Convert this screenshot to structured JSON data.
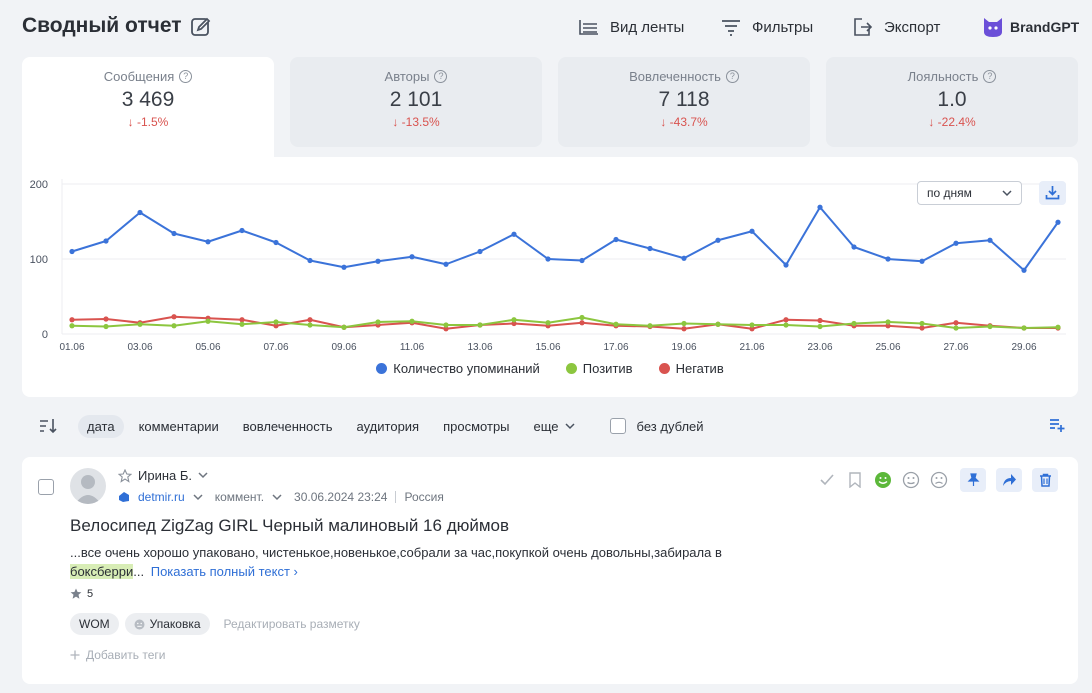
{
  "header": {
    "title": "Сводный отчет",
    "feed_view": "Вид ленты",
    "filters": "Фильтры",
    "export": "Экспорт",
    "brand": "BrandGPT"
  },
  "kpis": [
    {
      "label": "Сообщения",
      "value": "3 469",
      "delta": "↓ -1.5%"
    },
    {
      "label": "Авторы",
      "value": "2 101",
      "delta": "↓ -13.5%"
    },
    {
      "label": "Вовлеченность",
      "value": "7 118",
      "delta": "↓ -43.7%"
    },
    {
      "label": "Лояльность",
      "value": "1.0",
      "delta": "↓ -22.4%"
    }
  ],
  "chart_controls": {
    "period": "по дням"
  },
  "chart_data": {
    "type": "line",
    "x": [
      "01.06",
      "02.06",
      "03.06",
      "04.06",
      "05.06",
      "06.06",
      "07.06",
      "08.06",
      "09.06",
      "10.06",
      "11.06",
      "12.06",
      "13.06",
      "14.06",
      "15.06",
      "16.06",
      "17.06",
      "18.06",
      "19.06",
      "20.06",
      "21.06",
      "22.06",
      "23.06",
      "24.06",
      "25.06",
      "26.06",
      "27.06",
      "28.06",
      "29.06",
      "30.06"
    ],
    "tick_labels": [
      "01.06",
      "03.06",
      "05.06",
      "07.06",
      "09.06",
      "11.06",
      "13.06",
      "15.06",
      "17.06",
      "19.06",
      "21.06",
      "23.06",
      "25.06",
      "27.06",
      "29.06"
    ],
    "yticks": [
      0,
      100,
      200
    ],
    "ylim": [
      0,
      200
    ],
    "grid": true,
    "legend_position": "bottom",
    "series": [
      {
        "name": "Количество упоминаний",
        "color": "#3b73d9",
        "values": [
          110,
          124,
          162,
          134,
          123,
          138,
          122,
          98,
          89,
          97,
          103,
          93,
          110,
          133,
          100,
          98,
          126,
          114,
          101,
          125,
          137,
          92,
          169,
          116,
          100,
          97,
          121,
          125,
          85,
          149
        ]
      },
      {
        "name": "Позитив",
        "color": "#8cc63f",
        "values": [
          11,
          10,
          13,
          11,
          17,
          13,
          16,
          12,
          9,
          16,
          17,
          12,
          12,
          19,
          15,
          22,
          13,
          11,
          14,
          13,
          12,
          12,
          10,
          14,
          16,
          14,
          8,
          10,
          8,
          9
        ]
      },
      {
        "name": "Негатив",
        "color": "#d9534f",
        "values": [
          19,
          20,
          15,
          23,
          21,
          19,
          11,
          19,
          9,
          12,
          15,
          7,
          12,
          14,
          11,
          15,
          11,
          10,
          7,
          13,
          7,
          19,
          18,
          11,
          11,
          8,
          15,
          11,
          8,
          8
        ]
      }
    ]
  },
  "sort_bar": {
    "options": [
      "дата",
      "комментарии",
      "вовлеченность",
      "аудитория",
      "просмотры"
    ],
    "more": "еще",
    "no_duplicates": "без дублей"
  },
  "post": {
    "author": "Ирина Б.",
    "source": "detmir.ru",
    "type": "коммент.",
    "datetime": "30.06.2024 23:24",
    "country": "Россия",
    "title": "Велосипед ZigZag GIRL Черный малиновый 16 дюймов",
    "text_main": "...все очень хорошо упаковано, чистенькое,новенькое,собрали за час,покупкой очень довольны,забирала в ",
    "text_highlight": "боксберри",
    "text_tail": "...",
    "show_full": "Показать полный текст ›",
    "rating": "5",
    "tags": [
      "WOM",
      "Упаковка"
    ],
    "edit_markup": "Редактировать разметку",
    "add_tags": "Добавить теги"
  }
}
